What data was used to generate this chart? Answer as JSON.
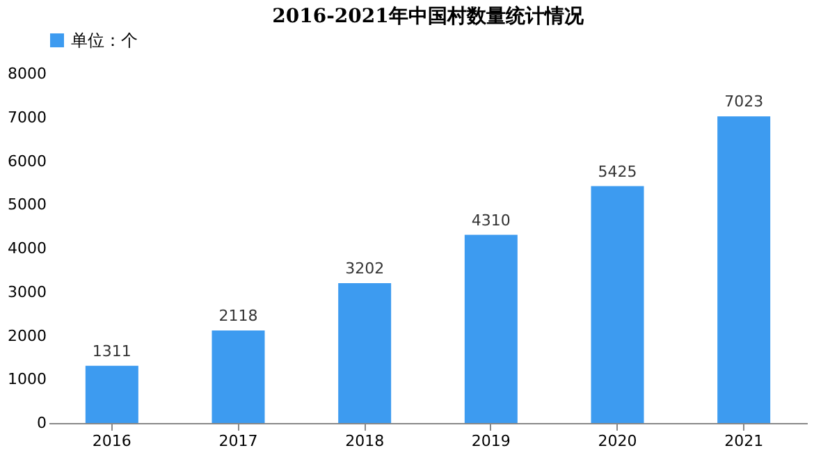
{
  "chart_data": {
    "type": "bar",
    "title": "2016-2021年中国村数量统计情况",
    "categories": [
      "2016",
      "2017",
      "2018",
      "2019",
      "2020",
      "2021"
    ],
    "series": [
      {
        "name": "单位：个",
        "color": "#3d9bf0",
        "values": [
          1311,
          2118,
          3202,
          4310,
          5425,
          7023
        ]
      }
    ],
    "ylim": [
      0,
      8000
    ],
    "yticks": [
      0,
      1000,
      2000,
      3000,
      4000,
      5000,
      6000,
      7000,
      8000
    ],
    "grid": false,
    "legend": "top",
    "data_labels": true
  }
}
